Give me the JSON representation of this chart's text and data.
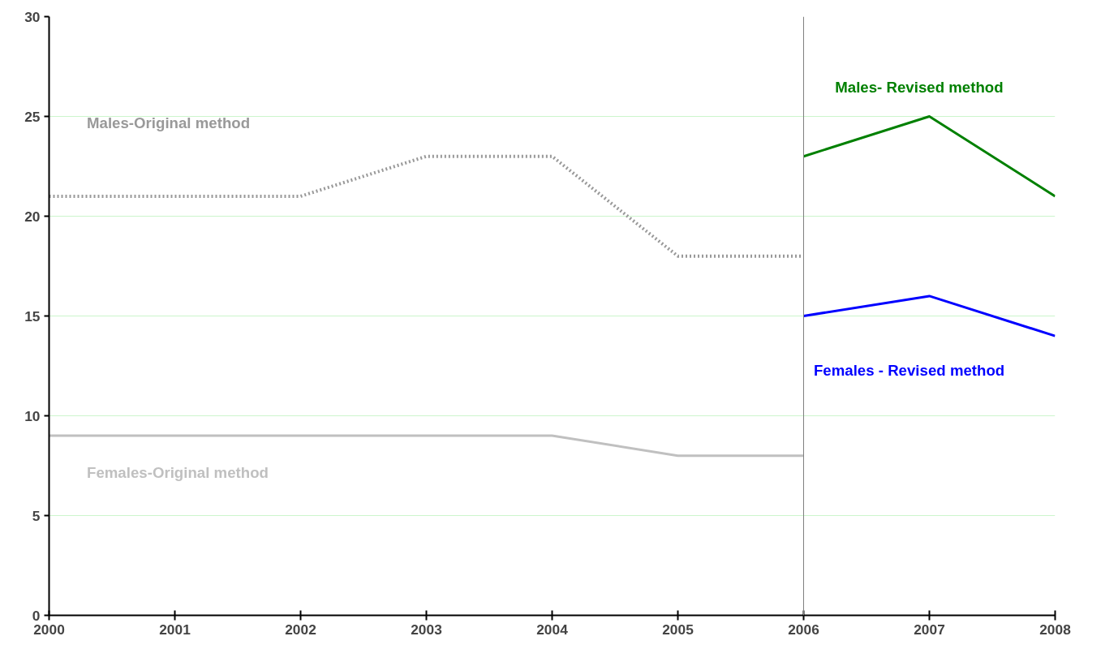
{
  "chart_data": {
    "type": "line",
    "x": [
      2000,
      2001,
      2002,
      2003,
      2004,
      2005,
      2006,
      2007,
      2008
    ],
    "series": [
      {
        "name": "Males-Original method",
        "color": "#999999",
        "line_style": "dotted",
        "values": [
          21,
          21,
          21,
          23,
          23,
          18,
          18,
          null,
          null
        ]
      },
      {
        "name": "Females-Original method",
        "color": "#c0c0c0",
        "line_style": "solid",
        "values": [
          9,
          9,
          9,
          9,
          9,
          8,
          8,
          null,
          null
        ]
      },
      {
        "name": "Males- Revised method",
        "color": "#008000",
        "line_style": "solid",
        "values": [
          null,
          null,
          null,
          null,
          null,
          null,
          23,
          25,
          21
        ]
      },
      {
        "name": "Females - Revised method",
        "color": "#0000ff",
        "line_style": "solid",
        "values": [
          null,
          null,
          null,
          null,
          null,
          null,
          15,
          16,
          14
        ]
      }
    ],
    "xlim": [
      2000,
      2008
    ],
    "xticks": [
      2000,
      2001,
      2002,
      2003,
      2004,
      2005,
      2006,
      2007,
      2008
    ],
    "ylim": [
      0,
      30
    ],
    "yticks": [
      0,
      5,
      10,
      15,
      20,
      25,
      30
    ],
    "ref_lines": [
      {
        "axis": "x",
        "value": 2006,
        "color": "#808080"
      }
    ],
    "grid": "y",
    "marker": "none"
  }
}
